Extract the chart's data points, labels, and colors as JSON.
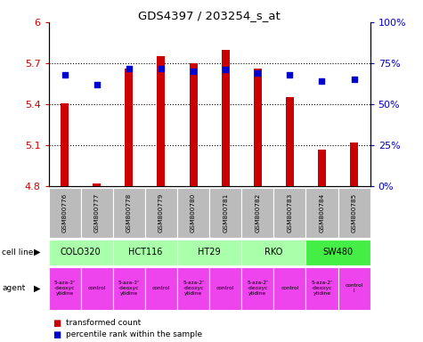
{
  "title": "GDS4397 / 203254_s_at",
  "samples": [
    "GSM800776",
    "GSM800777",
    "GSM800778",
    "GSM800779",
    "GSM800780",
    "GSM800781",
    "GSM800782",
    "GSM800783",
    "GSM800784",
    "GSM800785"
  ],
  "transformed_count": [
    5.41,
    4.82,
    5.66,
    5.75,
    5.7,
    5.8,
    5.66,
    5.45,
    5.07,
    5.12
  ],
  "percentile_rank": [
    68,
    62,
    72,
    72,
    70,
    71,
    69,
    68,
    64,
    65
  ],
  "ylim_left": [
    4.8,
    6.0
  ],
  "ylim_right": [
    0,
    100
  ],
  "yticks_left": [
    4.8,
    5.1,
    5.4,
    5.7,
    6.0
  ],
  "ytick_labels_left": [
    "4.8",
    "5.1",
    "5.4",
    "5.7",
    "6"
  ],
  "yticks_right": [
    0,
    25,
    50,
    75,
    100
  ],
  "ytick_labels_right": [
    "0%",
    "25%",
    "50%",
    "75%",
    "100%"
  ],
  "bar_color": "#cc0000",
  "dot_color": "#0000cc",
  "bar_bottom": 4.8,
  "bar_width": 0.25,
  "cell_lines": [
    {
      "name": "COLO320",
      "color": "#aaffaa",
      "span": [
        0,
        2
      ]
    },
    {
      "name": "HCT116",
      "color": "#aaffaa",
      "span": [
        2,
        4
      ]
    },
    {
      "name": "HT29",
      "color": "#aaffaa",
      "span": [
        4,
        6
      ]
    },
    {
      "name": "RKO",
      "color": "#aaffaa",
      "span": [
        6,
        8
      ]
    },
    {
      "name": "SW480",
      "color": "#44ee44",
      "span": [
        8,
        10
      ]
    }
  ],
  "agents": [
    {
      "name": "5-aza-2'\n-deoxyc\nytidine",
      "color": "#ee44ee",
      "span": [
        0,
        1
      ]
    },
    {
      "name": "control",
      "color": "#ee44ee",
      "span": [
        1,
        2
      ]
    },
    {
      "name": "5-aza-2'\n-deoxyc\nytidine",
      "color": "#ee44ee",
      "span": [
        2,
        3
      ]
    },
    {
      "name": "control",
      "color": "#ee44ee",
      "span": [
        3,
        4
      ]
    },
    {
      "name": "5-aza-2'\n-deoxyc\nytidine",
      "color": "#ee44ee",
      "span": [
        4,
        5
      ]
    },
    {
      "name": "control",
      "color": "#ee44ee",
      "span": [
        5,
        6
      ]
    },
    {
      "name": "5-aza-2'\n-deoxyc\nytidine",
      "color": "#ee44ee",
      "span": [
        6,
        7
      ]
    },
    {
      "name": "control",
      "color": "#ee44ee",
      "span": [
        7,
        8
      ]
    },
    {
      "name": "5-aza-2'\n-deoxyc\nytidine",
      "color": "#ee44ee",
      "span": [
        8,
        9
      ]
    },
    {
      "name": "control\nl",
      "color": "#ee44ee",
      "span": [
        9,
        10
      ]
    }
  ],
  "legend_labels": [
    "transformed count",
    "percentile rank within the sample"
  ],
  "legend_colors": [
    "#cc0000",
    "#0000cc"
  ],
  "left_label_color": "#cc0000",
  "right_label_color": "#0000cc",
  "grid_yticks": [
    5.1,
    5.4,
    5.7
  ],
  "background_color": "#ffffff",
  "sample_bg_color": "#bbbbbb"
}
